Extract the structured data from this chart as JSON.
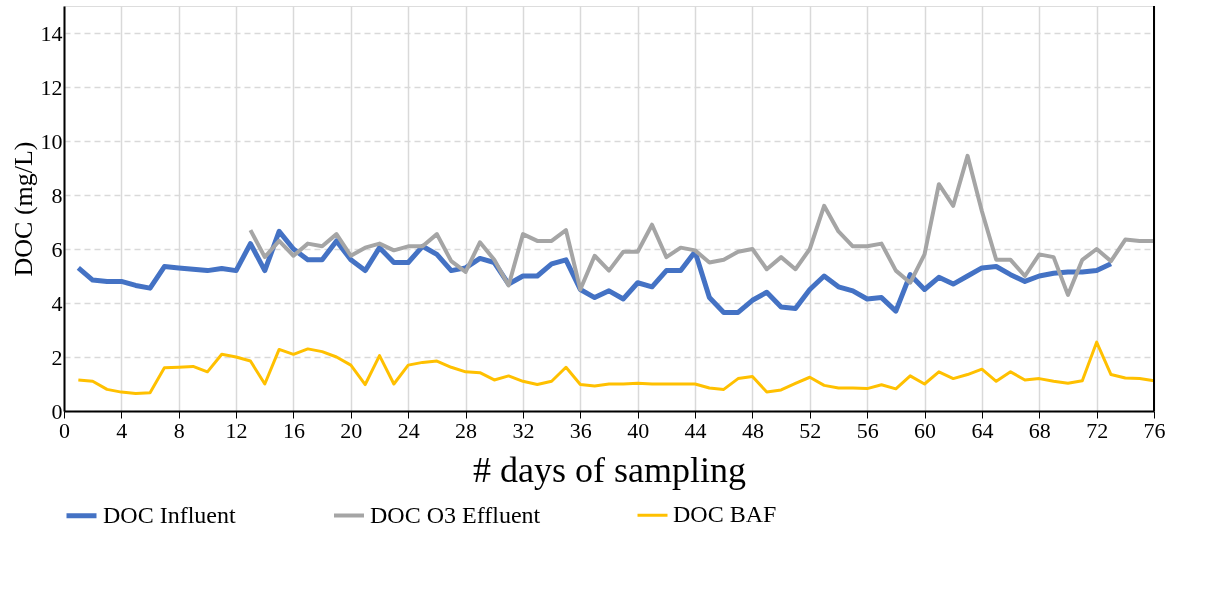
{
  "chart_data": {
    "type": "line",
    "xlabel": "# days of sampling",
    "ylabel": "DOC (mg/L)",
    "x": [
      1,
      2,
      3,
      4,
      5,
      6,
      7,
      8,
      9,
      10,
      11,
      12,
      13,
      14,
      15,
      16,
      17,
      18,
      19,
      20,
      21,
      22,
      23,
      24,
      25,
      26,
      27,
      28,
      29,
      30,
      31,
      32,
      33,
      34,
      35,
      36,
      37,
      38,
      39,
      40,
      41,
      42,
      43,
      44,
      45,
      46,
      47,
      48,
      49,
      50,
      51,
      52,
      53,
      54,
      55,
      56,
      57,
      58,
      59,
      60,
      61,
      62,
      63,
      64,
      65,
      66,
      67,
      68,
      69,
      70,
      71,
      72,
      73,
      74,
      75,
      76
    ],
    "series": [
      {
        "name": "DOC Influent",
        "color": "#4472c4",
        "values": [
          5.3,
          4.85,
          4.8,
          4.8,
          4.65,
          4.55,
          5.35,
          5.3,
          5.25,
          5.2,
          5.28,
          5.2,
          6.2,
          5.2,
          6.65,
          6.0,
          5.6,
          5.6,
          6.3,
          5.6,
          5.2,
          6.05,
          5.5,
          5.5,
          6.1,
          5.8,
          5.2,
          5.3,
          5.65,
          5.5,
          4.7,
          5.0,
          5.0,
          5.45,
          5.6,
          4.5,
          4.2,
          4.45,
          4.15,
          4.75,
          4.6,
          5.2,
          5.2,
          5.9,
          4.2,
          3.65,
          3.65,
          4.1,
          4.4,
          3.85,
          3.8,
          4.5,
          5.0,
          4.6,
          4.45,
          4.15,
          4.2,
          3.7,
          5.05,
          4.5,
          4.95,
          4.7,
          5.0,
          5.3,
          5.35,
          5.05,
          4.8,
          5.0,
          5.1,
          5.15,
          5.15,
          5.2,
          5.45,
          null,
          null,
          null
        ]
      },
      {
        "name": "DOC O3 Effluent",
        "color": "#a5a5a5",
        "values": [
          null,
          null,
          null,
          null,
          null,
          null,
          null,
          null,
          null,
          null,
          null,
          null,
          6.7,
          5.7,
          6.3,
          5.75,
          6.2,
          6.1,
          6.55,
          5.75,
          6.05,
          6.2,
          5.95,
          6.1,
          6.1,
          6.55,
          5.55,
          5.15,
          6.25,
          5.6,
          4.65,
          6.55,
          6.3,
          6.3,
          6.7,
          4.5,
          5.75,
          5.2,
          5.9,
          5.9,
          6.9,
          5.7,
          6.05,
          5.95,
          5.5,
          5.6,
          5.9,
          6.0,
          5.25,
          5.7,
          5.25,
          6.0,
          7.6,
          6.65,
          6.1,
          6.1,
          6.2,
          5.2,
          4.75,
          5.8,
          8.4,
          7.6,
          9.45,
          7.4,
          5.6,
          5.6,
          5.0,
          5.8,
          5.7,
          4.3,
          5.6,
          6.0,
          5.55,
          6.35,
          6.3,
          6.3
        ]
      },
      {
        "name": "DOC BAF",
        "color": "#ffc000",
        "values": [
          1.15,
          1.1,
          0.8,
          0.7,
          0.65,
          0.68,
          1.6,
          1.62,
          1.65,
          1.45,
          2.1,
          2.0,
          1.85,
          1.0,
          2.28,
          2.1,
          2.3,
          2.2,
          2.0,
          1.7,
          0.98,
          2.05,
          1.0,
          1.7,
          1.8,
          1.85,
          1.62,
          1.45,
          1.42,
          1.15,
          1.3,
          1.1,
          0.98,
          1.1,
          1.62,
          0.98,
          0.93,
          1.0,
          1.0,
          1.03,
          1.0,
          1.0,
          1.0,
          1.0,
          0.85,
          0.8,
          1.2,
          1.28,
          0.7,
          0.78,
          1.02,
          1.25,
          0.95,
          0.85,
          0.85,
          0.83,
          0.97,
          0.82,
          1.3,
          1.0,
          1.45,
          1.2,
          1.35,
          1.55,
          1.1,
          1.45,
          1.15,
          1.2,
          1.1,
          1.03,
          1.12,
          2.55,
          1.35,
          1.22,
          1.2,
          1.12
        ]
      }
    ],
    "xlim": [
      0,
      76
    ],
    "xticks": [
      0,
      4,
      8,
      12,
      16,
      20,
      24,
      28,
      32,
      36,
      40,
      44,
      48,
      52,
      56,
      60,
      64,
      68,
      72,
      76
    ],
    "ylim": [
      0,
      15
    ],
    "yticks": [
      0,
      2,
      4,
      6,
      8,
      10,
      12,
      14
    ],
    "grid": true,
    "legend": "bottom",
    "line_style": "solid"
  }
}
